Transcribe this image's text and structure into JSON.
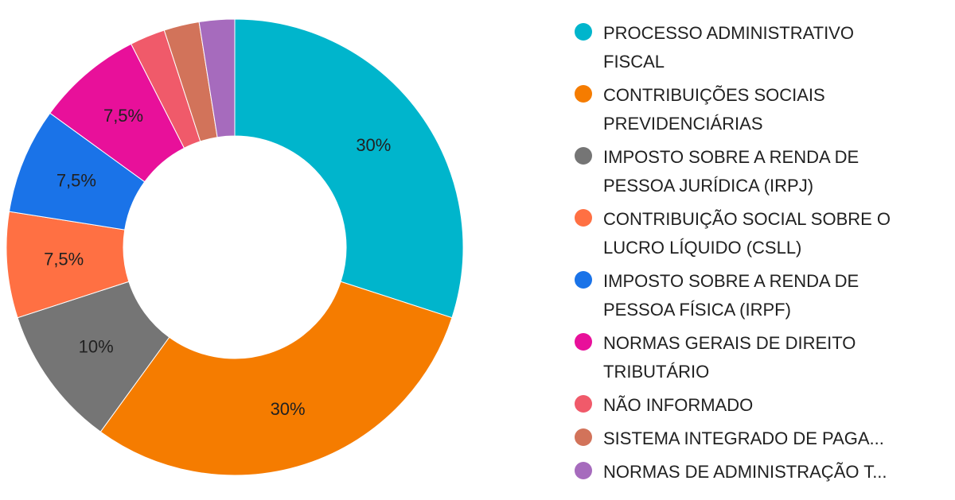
{
  "chart_data": {
    "type": "pie",
    "donut": true,
    "title": "",
    "legend_position": "right",
    "slices": [
      {
        "name": "PROCESSO ADMINISTRATIVO\nFISCAL",
        "value": 30,
        "label": "30%",
        "color": "#00b5cc"
      },
      {
        "name": "CONTRIBUIÇÕES SOCIAIS\nPREVIDENCIÁRIAS",
        "value": 30,
        "label": "30%",
        "color": "#f57c00"
      },
      {
        "name": "IMPOSTO SOBRE A RENDA DE\nPESSOA JURÍDICA (IRPJ)",
        "value": 10,
        "label": "10%",
        "color": "#757575"
      },
      {
        "name": "CONTRIBUIÇÃO SOCIAL SOBRE O\nLUCRO LÍQUIDO (CSLL)",
        "value": 7.5,
        "label": "7,5%",
        "color": "#ff7043"
      },
      {
        "name": "IMPOSTO SOBRE A RENDA DE\nPESSOA FÍSICA (IRPF)",
        "value": 7.5,
        "label": "7,5%",
        "color": "#1a73e8"
      },
      {
        "name": "NORMAS GERAIS DE DIREITO\nTRIBUTÁRIO",
        "value": 7.5,
        "label": "7,5%",
        "color": "#e8109a"
      },
      {
        "name": "NÃO INFORMADO",
        "value": 2.5,
        "label": "",
        "color": "#f05a6a"
      },
      {
        "name": "SISTEMA INTEGRADO DE PAGA...",
        "value": 2.5,
        "label": "",
        "color": "#d2735a"
      },
      {
        "name": "NORMAS DE ADMINISTRAÇÃO T...",
        "value": 2.5,
        "label": "",
        "color": "#a66bbd"
      }
    ]
  }
}
